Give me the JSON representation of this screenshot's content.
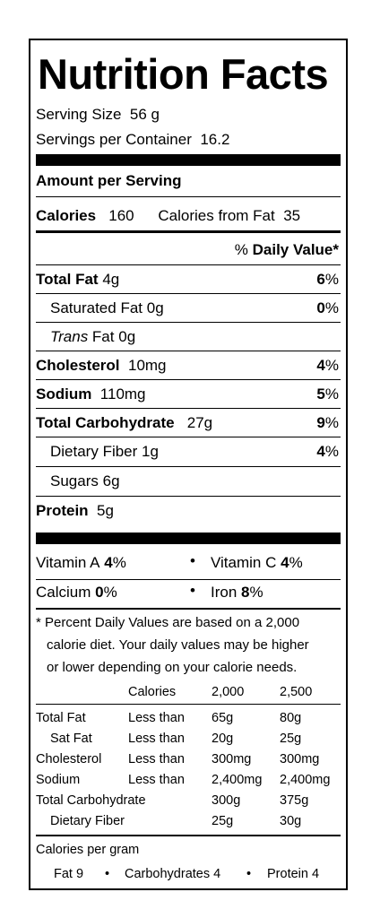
{
  "header": {
    "title": "Nutrition Facts",
    "serving_size_label": "Serving Size",
    "serving_size_value": "56  g",
    "servings_label": "Servings per Container",
    "servings_value": "16.2"
  },
  "amount": {
    "label": "Amount per Serving",
    "calories_label": "Calories",
    "calories_value": "160",
    "calories_fat_label": "Calories from Fat",
    "calories_fat_value": "35",
    "dv_header_pct": "% ",
    "dv_header_label": "Daily Value*"
  },
  "nutrients": [
    {
      "name": "Total Fat",
      "amount": "4g",
      "pct": "6"
    },
    {
      "name": "Saturated Fat",
      "amount": "0g",
      "pct": "0"
    },
    {
      "name_italic": "Trans",
      "name": " Fat",
      "amount": "0g"
    },
    {
      "name": "Cholesterol",
      "amount": "10mg",
      "pct": "4"
    },
    {
      "name": "Sodium",
      "amount": "110mg",
      "pct": "5"
    },
    {
      "name": "Total Carbohydrate",
      "amount": "27g",
      "pct": "9"
    },
    {
      "name": "Dietary Fiber",
      "amount": "1g",
      "pct": "4"
    },
    {
      "name": "Sugars",
      "amount": "6g"
    },
    {
      "name": "Protein",
      "amount": "5g"
    }
  ],
  "pct_sign": "%",
  "vitamins": {
    "vit_a_label": "Vitamin A",
    "vit_a_pct": "4",
    "vit_c_label": "Vitamin C",
    "vit_c_pct": "4",
    "calcium_label": "Calcium",
    "calcium_pct": "0",
    "iron_label": "Iron",
    "iron_pct": "8",
    "bullet": "•"
  },
  "footnote": {
    "line1": "* Percent Daily Values are based on a 2,000",
    "line2": "calorie diet. Your daily values may be higher",
    "line3": "or lower depending on your calorie needs."
  },
  "table": {
    "headers": [
      "Calories",
      "2,000",
      "2,500"
    ],
    "rows": [
      {
        "name": "Total Fat",
        "qual": "Less than",
        "v1": "65g",
        "v2": "80g"
      },
      {
        "name": "Sat Fat",
        "qual": "Less than",
        "v1": "20g",
        "v2": "25g"
      },
      {
        "name": "Cholesterol",
        "qual": "Less than",
        "v1": "300mg",
        "v2": "300mg"
      },
      {
        "name": "Sodium",
        "qual": "Less than",
        "v1": "2,400mg",
        "v2": "2,400mg"
      },
      {
        "name": "Total Carbohydrate",
        "qual": "",
        "v1": "300g",
        "v2": "375g"
      },
      {
        "name": "Dietary Fiber",
        "qual": "",
        "v1": "25g",
        "v2": "30g"
      }
    ]
  },
  "per_gram": {
    "label": "Calories per gram",
    "fat": "Fat 9",
    "carb": "Carbohydrates 4",
    "protein": "Protein 4",
    "bullet": "•"
  }
}
